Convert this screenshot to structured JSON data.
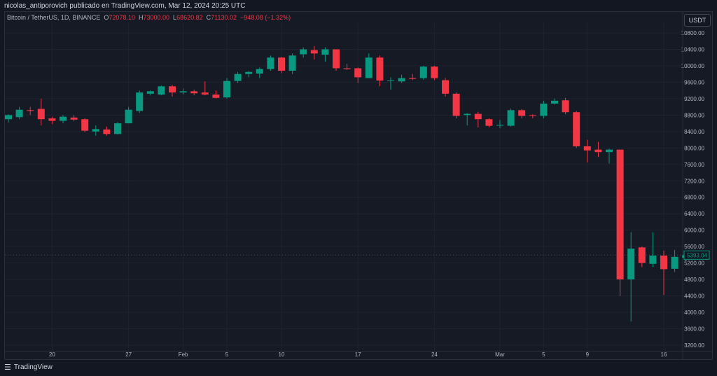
{
  "header": {
    "publisher": "nicolas_antiporovich publicado en TradingView.com, Mar 12, 2024 20:25 UTC",
    "currency": "USDT"
  },
  "legend": {
    "symbol": "Bitcoin / TetherUS, 1D, BINANCE",
    "open_label": "O",
    "open": "72078.10",
    "high_label": "H",
    "high": "73000.00",
    "low_label": "L",
    "low": "68620.82",
    "close_label": "C",
    "close": "71130.02",
    "change": "−948.08 (−1.32%)"
  },
  "footer": {
    "brand": "TradingView"
  },
  "colors": {
    "up": "#089981",
    "down": "#f23645",
    "grid": "#1f2330",
    "text": "#b2b5be"
  },
  "chart_data": {
    "type": "candlestick",
    "ylim": [
      3000,
      11000
    ],
    "y_ticks": [
      "10800.00",
      "10400.00",
      "10000.00",
      "9600.00",
      "9200.00",
      "8800.00",
      "8400.00",
      "8000.00",
      "7600.00",
      "7200.00",
      "6800.00",
      "6400.00",
      "6000.00",
      "5600.00",
      "5200.00",
      "4800.00",
      "4400.00",
      "4000.00",
      "3600.00",
      "3200.00"
    ],
    "x_ticks": [
      {
        "index": 4,
        "label": "20"
      },
      {
        "index": 11,
        "label": "27"
      },
      {
        "index": 16,
        "label": "Feb"
      },
      {
        "index": 20,
        "label": "5"
      },
      {
        "index": 25,
        "label": "10"
      },
      {
        "index": 32,
        "label": "17"
      },
      {
        "index": 39,
        "label": "24"
      },
      {
        "index": 45,
        "label": "Mar"
      },
      {
        "index": 49,
        "label": "5"
      },
      {
        "index": 53,
        "label": "9"
      },
      {
        "index": 60,
        "label": "16"
      }
    ],
    "last_price": "5393.04",
    "candles": [
      {
        "o": 8700,
        "h": 8820,
        "l": 8620,
        "c": 8800
      },
      {
        "o": 8750,
        "h": 9000,
        "l": 8700,
        "c": 8930
      },
      {
        "o": 8920,
        "h": 9000,
        "l": 8800,
        "c": 8900
      },
      {
        "o": 8950,
        "h": 9200,
        "l": 8550,
        "c": 8700
      },
      {
        "o": 8720,
        "h": 8760,
        "l": 8580,
        "c": 8660
      },
      {
        "o": 8660,
        "h": 8800,
        "l": 8600,
        "c": 8760
      },
      {
        "o": 8740,
        "h": 8800,
        "l": 8650,
        "c": 8690
      },
      {
        "o": 8700,
        "h": 8720,
        "l": 8380,
        "c": 8420
      },
      {
        "o": 8400,
        "h": 8550,
        "l": 8300,
        "c": 8460
      },
      {
        "o": 8450,
        "h": 8520,
        "l": 8300,
        "c": 8340
      },
      {
        "o": 8340,
        "h": 8630,
        "l": 8330,
        "c": 8600
      },
      {
        "o": 8600,
        "h": 9000,
        "l": 8600,
        "c": 8930
      },
      {
        "o": 8900,
        "h": 9400,
        "l": 8850,
        "c": 9350
      },
      {
        "o": 9320,
        "h": 9400,
        "l": 9280,
        "c": 9380
      },
      {
        "o": 9300,
        "h": 9520,
        "l": 9280,
        "c": 9500
      },
      {
        "o": 9500,
        "h": 9540,
        "l": 9250,
        "c": 9350
      },
      {
        "o": 9350,
        "h": 9450,
        "l": 9300,
        "c": 9380
      },
      {
        "o": 9380,
        "h": 9420,
        "l": 9280,
        "c": 9330
      },
      {
        "o": 9350,
        "h": 9620,
        "l": 9280,
        "c": 9300
      },
      {
        "o": 9300,
        "h": 9400,
        "l": 9200,
        "c": 9220
      },
      {
        "o": 9230,
        "h": 9700,
        "l": 9200,
        "c": 9630
      },
      {
        "o": 9630,
        "h": 9850,
        "l": 9580,
        "c": 9800
      },
      {
        "o": 9800,
        "h": 9870,
        "l": 9720,
        "c": 9850
      },
      {
        "o": 9810,
        "h": 9960,
        "l": 9700,
        "c": 9920
      },
      {
        "o": 9920,
        "h": 10250,
        "l": 9880,
        "c": 10200
      },
      {
        "o": 10200,
        "h": 10220,
        "l": 9820,
        "c": 9880
      },
      {
        "o": 9880,
        "h": 10300,
        "l": 9800,
        "c": 10250
      },
      {
        "o": 10280,
        "h": 10450,
        "l": 10200,
        "c": 10400
      },
      {
        "o": 10380,
        "h": 10480,
        "l": 10150,
        "c": 10300
      },
      {
        "o": 10270,
        "h": 10450,
        "l": 10100,
        "c": 10400
      },
      {
        "o": 10400,
        "h": 10400,
        "l": 9880,
        "c": 9940
      },
      {
        "o": 9940,
        "h": 10050,
        "l": 9900,
        "c": 9920
      },
      {
        "o": 9940,
        "h": 9960,
        "l": 9580,
        "c": 9720
      },
      {
        "o": 9700,
        "h": 10300,
        "l": 9700,
        "c": 10200
      },
      {
        "o": 10200,
        "h": 10250,
        "l": 9500,
        "c": 9640
      },
      {
        "o": 9640,
        "h": 9720,
        "l": 9420,
        "c": 9650
      },
      {
        "o": 9620,
        "h": 9780,
        "l": 9580,
        "c": 9700
      },
      {
        "o": 9700,
        "h": 9800,
        "l": 9650,
        "c": 9680
      },
      {
        "o": 9700,
        "h": 10000,
        "l": 9660,
        "c": 9980
      },
      {
        "o": 9980,
        "h": 10000,
        "l": 9650,
        "c": 9700
      },
      {
        "o": 9650,
        "h": 9700,
        "l": 9250,
        "c": 9320
      },
      {
        "o": 9320,
        "h": 9350,
        "l": 8720,
        "c": 8780
      },
      {
        "o": 8800,
        "h": 8850,
        "l": 8550,
        "c": 8830
      },
      {
        "o": 8830,
        "h": 8880,
        "l": 8500,
        "c": 8700
      },
      {
        "o": 8700,
        "h": 8720,
        "l": 8500,
        "c": 8540
      },
      {
        "o": 8560,
        "h": 8680,
        "l": 8480,
        "c": 8560
      },
      {
        "o": 8540,
        "h": 8960,
        "l": 8520,
        "c": 8920
      },
      {
        "o": 8920,
        "h": 8950,
        "l": 8720,
        "c": 8780
      },
      {
        "o": 8800,
        "h": 8820,
        "l": 8720,
        "c": 8790
      },
      {
        "o": 8780,
        "h": 9150,
        "l": 8720,
        "c": 9080
      },
      {
        "o": 9080,
        "h": 9200,
        "l": 9060,
        "c": 9150
      },
      {
        "o": 9160,
        "h": 9220,
        "l": 8820,
        "c": 8870
      },
      {
        "o": 8870,
        "h": 8900,
        "l": 8000,
        "c": 8040
      },
      {
        "o": 8040,
        "h": 8200,
        "l": 7650,
        "c": 7940
      },
      {
        "o": 7960,
        "h": 8150,
        "l": 7780,
        "c": 7900
      },
      {
        "o": 7900,
        "h": 7980,
        "l": 7620,
        "c": 7960
      },
      {
        "o": 7960,
        "h": 7960,
        "l": 4400,
        "c": 4800
      },
      {
        "o": 4800,
        "h": 5950,
        "l": 3780,
        "c": 5550
      },
      {
        "o": 5580,
        "h": 5600,
        "l": 5100,
        "c": 5200
      },
      {
        "o": 5180,
        "h": 5950,
        "l": 5100,
        "c": 5380
      },
      {
        "o": 5380,
        "h": 5500,
        "l": 4420,
        "c": 5050
      },
      {
        "o": 5060,
        "h": 5520,
        "l": 4980,
        "c": 5350
      },
      {
        "o": 5330,
        "h": 5450,
        "l": 5250,
        "c": 5393
      }
    ]
  }
}
